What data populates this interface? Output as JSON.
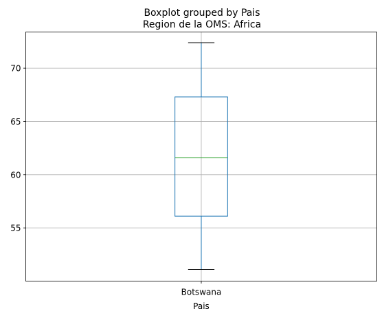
{
  "chart_data": {
    "type": "box",
    "suptitle": "Boxplot grouped by Pais",
    "title": "Region de la OMS: Africa",
    "xlabel": "Pais",
    "ylabel": "",
    "categories": [
      "Botswana"
    ],
    "boxes": [
      {
        "category": "Botswana",
        "whisker_low": 51.1,
        "q1": 56.1,
        "median": 61.6,
        "q3": 67.3,
        "whisker_high": 72.4
      }
    ],
    "ylim": [
      50.0,
      73.4
    ],
    "yticks": [
      55,
      60,
      65,
      70
    ],
    "grid": true,
    "colors": {
      "box": "#1f77b4",
      "median": "#2ca02c",
      "caps": "#000000",
      "grid": "#b0b0b0",
      "axes": "#000000"
    }
  }
}
